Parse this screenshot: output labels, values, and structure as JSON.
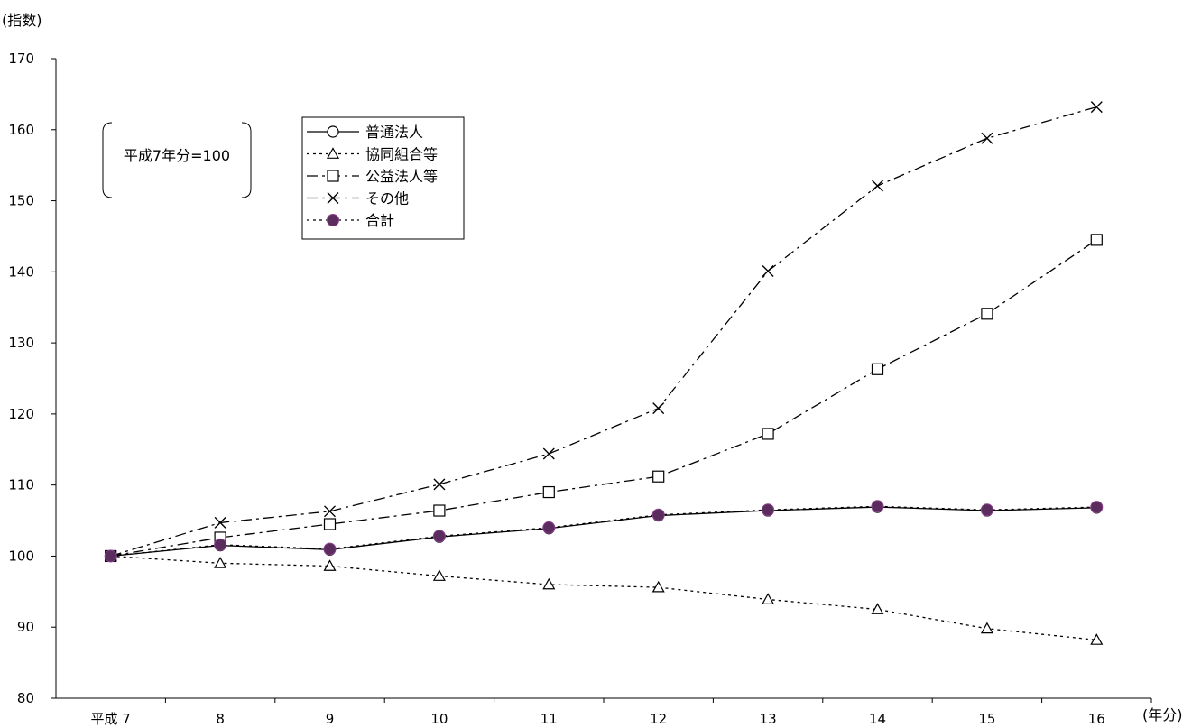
{
  "chart_data": {
    "type": "line",
    "ylabel": "(指数)",
    "xlabel": "(年分)",
    "note": "平成7年分=100",
    "ylim": [
      80,
      170
    ],
    "y_ticks": [
      "80",
      "90",
      "100",
      "110",
      "120",
      "130",
      "140",
      "150",
      "160",
      "170"
    ],
    "categories": [
      "平成 7",
      "8",
      "9",
      "10",
      "11",
      "12",
      "13",
      "14",
      "15",
      "16"
    ],
    "legend_position": "top-left",
    "grid": false,
    "series": [
      {
        "name": "普通法人",
        "marker": "circle",
        "dash": "solid",
        "color": "#000000",
        "values": [
          100,
          101.5,
          100.9,
          102.7,
          103.9,
          105.7,
          106.4,
          106.9,
          106.4,
          106.8
        ]
      },
      {
        "name": "協同組合等",
        "marker": "triangle",
        "dash": "dotted",
        "color": "#000000",
        "values": [
          100,
          99.0,
          98.6,
          97.2,
          96.0,
          95.6,
          93.9,
          92.5,
          89.8,
          88.2
        ]
      },
      {
        "name": "公益法人等",
        "marker": "square",
        "dash": "dashdot",
        "color": "#000000",
        "values": [
          100,
          102.6,
          104.5,
          106.4,
          109.0,
          111.2,
          117.2,
          126.3,
          134.1,
          144.5
        ]
      },
      {
        "name": "その他",
        "marker": "x",
        "dash": "dashdot",
        "color": "#000000",
        "values": [
          100,
          104.7,
          106.3,
          110.1,
          114.4,
          120.8,
          140.1,
          152.1,
          158.8,
          163.2
        ]
      },
      {
        "name": "合計",
        "marker": "filled-circle",
        "dash": "dotted",
        "color": "#5b2c5e",
        "values": [
          100,
          101.6,
          101.0,
          102.8,
          104.0,
          105.8,
          106.5,
          107.0,
          106.5,
          106.9
        ]
      }
    ]
  }
}
